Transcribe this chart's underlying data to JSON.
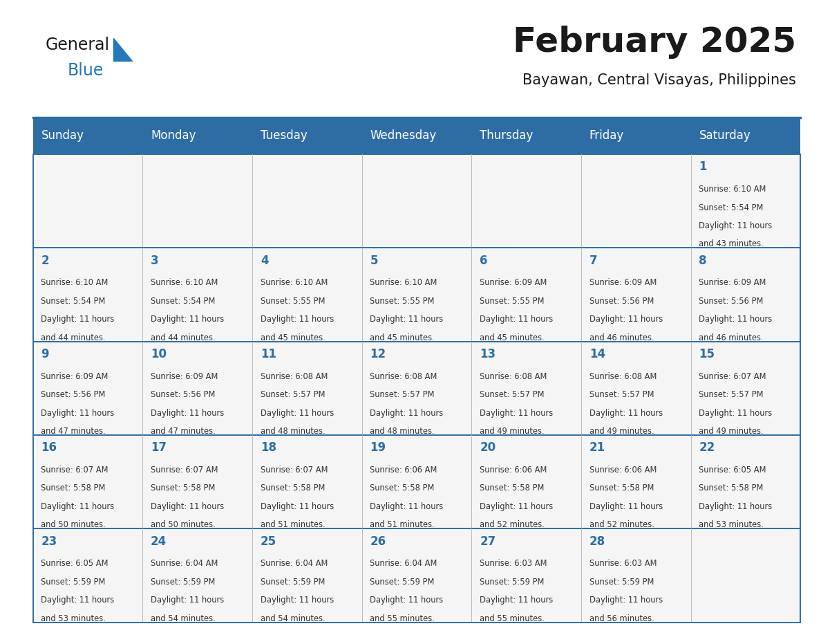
{
  "title": "February 2025",
  "subtitle": "Bayawan, Central Visayas, Philippines",
  "days_of_week": [
    "Sunday",
    "Monday",
    "Tuesday",
    "Wednesday",
    "Thursday",
    "Friday",
    "Saturday"
  ],
  "header_bg": "#2E6DA4",
  "header_text": "#FFFFFF",
  "cell_bg": "#F5F5F5",
  "border_color": "#2E6DA4",
  "text_color": "#333333",
  "day_num_color": "#2E6DA4",
  "logo_general_color": "#1a1a1a",
  "logo_blue_color": "#2479BD",
  "calendar": [
    [
      null,
      null,
      null,
      null,
      null,
      null,
      {
        "day": 1,
        "sunrise": "6:10 AM",
        "sunset": "5:54 PM",
        "daylight": "11 hours and 43 minutes."
      }
    ],
    [
      {
        "day": 2,
        "sunrise": "6:10 AM",
        "sunset": "5:54 PM",
        "daylight": "11 hours and 44 minutes."
      },
      {
        "day": 3,
        "sunrise": "6:10 AM",
        "sunset": "5:54 PM",
        "daylight": "11 hours and 44 minutes."
      },
      {
        "day": 4,
        "sunrise": "6:10 AM",
        "sunset": "5:55 PM",
        "daylight": "11 hours and 45 minutes."
      },
      {
        "day": 5,
        "sunrise": "6:10 AM",
        "sunset": "5:55 PM",
        "daylight": "11 hours and 45 minutes."
      },
      {
        "day": 6,
        "sunrise": "6:09 AM",
        "sunset": "5:55 PM",
        "daylight": "11 hours and 45 minutes."
      },
      {
        "day": 7,
        "sunrise": "6:09 AM",
        "sunset": "5:56 PM",
        "daylight": "11 hours and 46 minutes."
      },
      {
        "day": 8,
        "sunrise": "6:09 AM",
        "sunset": "5:56 PM",
        "daylight": "11 hours and 46 minutes."
      }
    ],
    [
      {
        "day": 9,
        "sunrise": "6:09 AM",
        "sunset": "5:56 PM",
        "daylight": "11 hours and 47 minutes."
      },
      {
        "day": 10,
        "sunrise": "6:09 AM",
        "sunset": "5:56 PM",
        "daylight": "11 hours and 47 minutes."
      },
      {
        "day": 11,
        "sunrise": "6:08 AM",
        "sunset": "5:57 PM",
        "daylight": "11 hours and 48 minutes."
      },
      {
        "day": 12,
        "sunrise": "6:08 AM",
        "sunset": "5:57 PM",
        "daylight": "11 hours and 48 minutes."
      },
      {
        "day": 13,
        "sunrise": "6:08 AM",
        "sunset": "5:57 PM",
        "daylight": "11 hours and 49 minutes."
      },
      {
        "day": 14,
        "sunrise": "6:08 AM",
        "sunset": "5:57 PM",
        "daylight": "11 hours and 49 minutes."
      },
      {
        "day": 15,
        "sunrise": "6:07 AM",
        "sunset": "5:57 PM",
        "daylight": "11 hours and 49 minutes."
      }
    ],
    [
      {
        "day": 16,
        "sunrise": "6:07 AM",
        "sunset": "5:58 PM",
        "daylight": "11 hours and 50 minutes."
      },
      {
        "day": 17,
        "sunrise": "6:07 AM",
        "sunset": "5:58 PM",
        "daylight": "11 hours and 50 minutes."
      },
      {
        "day": 18,
        "sunrise": "6:07 AM",
        "sunset": "5:58 PM",
        "daylight": "11 hours and 51 minutes."
      },
      {
        "day": 19,
        "sunrise": "6:06 AM",
        "sunset": "5:58 PM",
        "daylight": "11 hours and 51 minutes."
      },
      {
        "day": 20,
        "sunrise": "6:06 AM",
        "sunset": "5:58 PM",
        "daylight": "11 hours and 52 minutes."
      },
      {
        "day": 21,
        "sunrise": "6:06 AM",
        "sunset": "5:58 PM",
        "daylight": "11 hours and 52 minutes."
      },
      {
        "day": 22,
        "sunrise": "6:05 AM",
        "sunset": "5:58 PM",
        "daylight": "11 hours and 53 minutes."
      }
    ],
    [
      {
        "day": 23,
        "sunrise": "6:05 AM",
        "sunset": "5:59 PM",
        "daylight": "11 hours and 53 minutes."
      },
      {
        "day": 24,
        "sunrise": "6:04 AM",
        "sunset": "5:59 PM",
        "daylight": "11 hours and 54 minutes."
      },
      {
        "day": 25,
        "sunrise": "6:04 AM",
        "sunset": "5:59 PM",
        "daylight": "11 hours and 54 minutes."
      },
      {
        "day": 26,
        "sunrise": "6:04 AM",
        "sunset": "5:59 PM",
        "daylight": "11 hours and 55 minutes."
      },
      {
        "day": 27,
        "sunrise": "6:03 AM",
        "sunset": "5:59 PM",
        "daylight": "11 hours and 55 minutes."
      },
      {
        "day": 28,
        "sunrise": "6:03 AM",
        "sunset": "5:59 PM",
        "daylight": "11 hours and 56 minutes."
      },
      null
    ]
  ]
}
